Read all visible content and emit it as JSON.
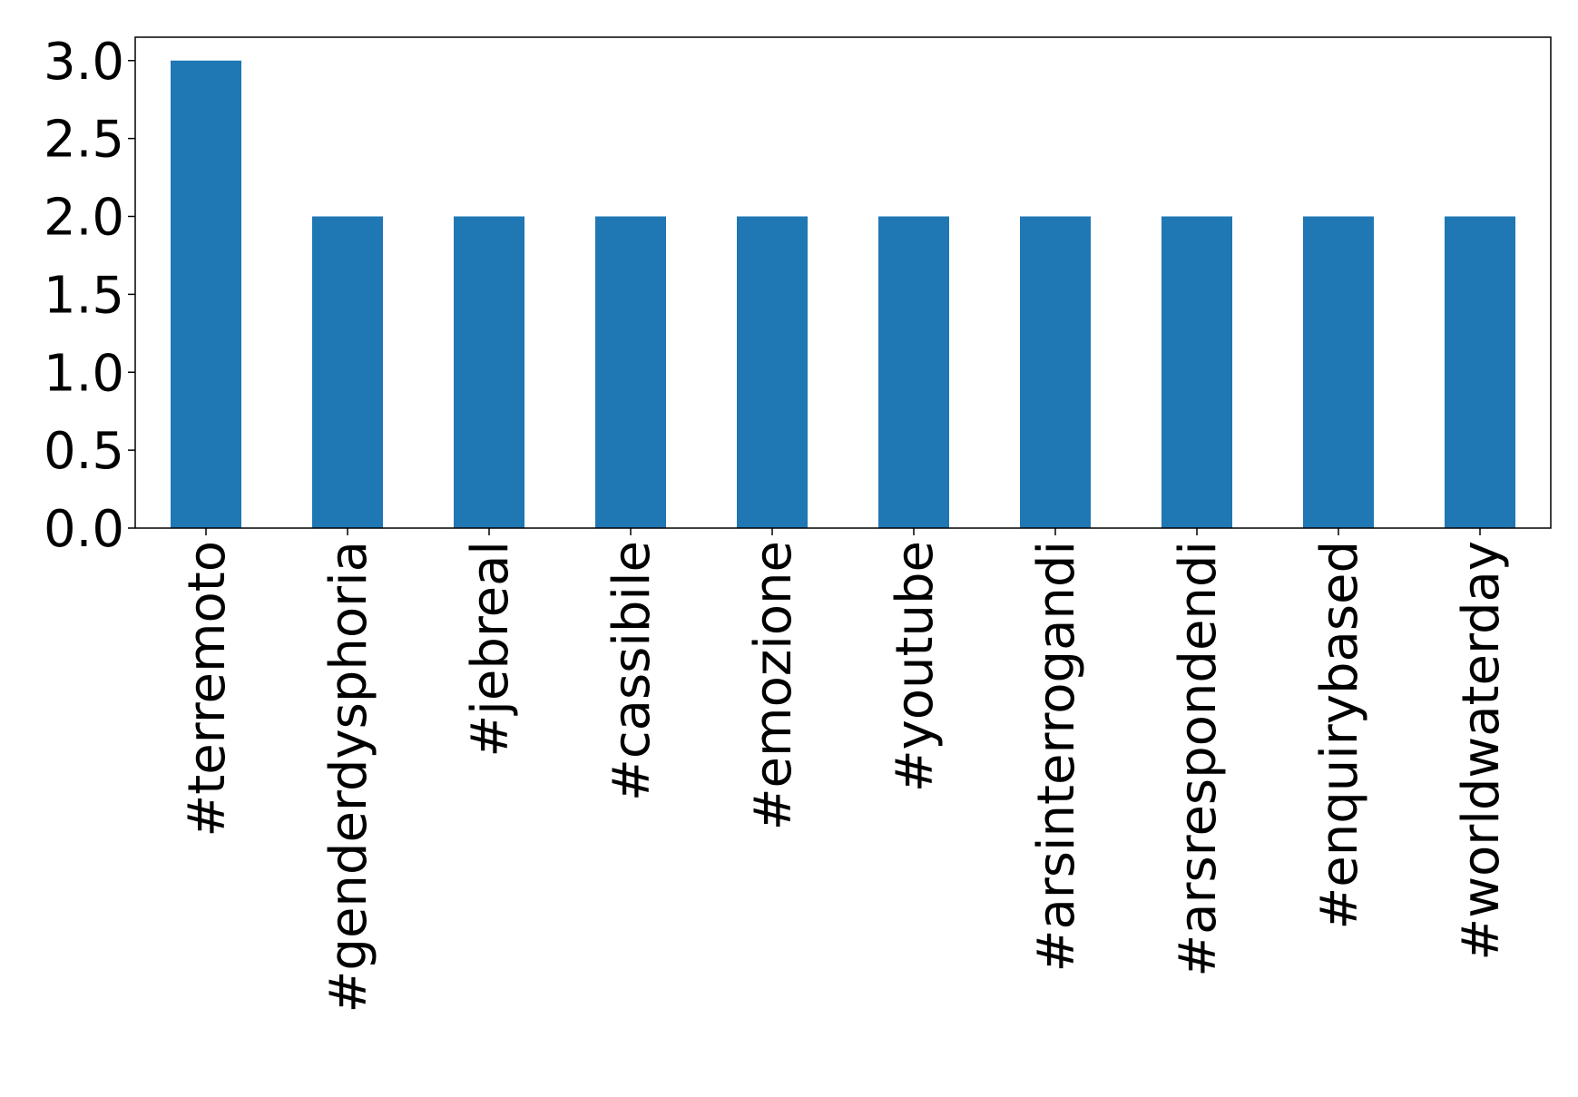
{
  "chart_data": {
    "type": "bar",
    "categories": [
      "#terremoto",
      "#genderdysphoria",
      "#jebreal",
      "#cassibile",
      "#emozione",
      "#youtube",
      "#arsinterrogandi",
      "#arsrespondendi",
      "#enquirybased",
      "#worldwaterday"
    ],
    "values": [
      3,
      2,
      2,
      2,
      2,
      2,
      2,
      2,
      2,
      2
    ],
    "color": "#1f77b4",
    "ylim": [
      0,
      3.15
    ],
    "yticks": [
      {
        "value": 0,
        "label": "0.0"
      },
      {
        "value": 0.5,
        "label": "0.5"
      },
      {
        "value": 1,
        "label": "1.0"
      },
      {
        "value": 1.5,
        "label": "1.5"
      },
      {
        "value": 2,
        "label": "2.0"
      },
      {
        "value": 2.5,
        "label": "2.5"
      },
      {
        "value": 3,
        "label": "3.0"
      }
    ],
    "grid": false
  }
}
